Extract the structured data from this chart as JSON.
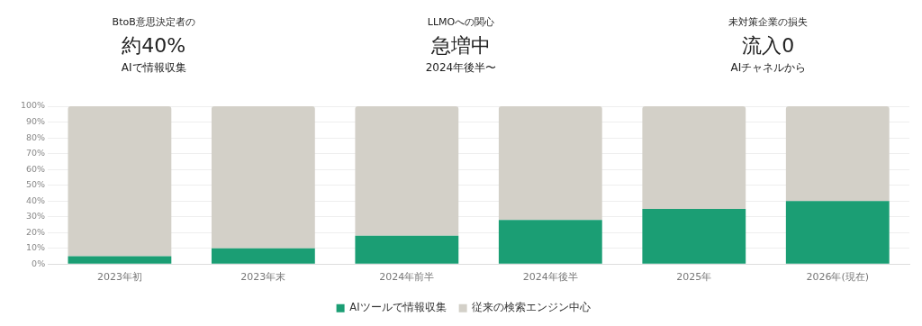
{
  "chart_data": [
    {
      "type": "other",
      "title": "BtoB意思決定者の",
      "subtitle": "約40%",
      "annotations": [
        "AIで情報収集"
      ]
    },
    {
      "type": "other",
      "title": "LLMOへの関心",
      "subtitle": "急増中",
      "annotations": [
        "2024年後半〜"
      ]
    },
    {
      "type": "other",
      "title": "未対策企業の損失",
      "subtitle": "流入0",
      "annotations": [
        "AIチャネルから"
      ]
    },
    {
      "type": "bar",
      "stacked": true,
      "categories": [
        "2023年初",
        "2023年末",
        "2024年前半",
        "2024年後半",
        "2025年",
        "2026年(現在)"
      ],
      "series": [
        {
          "name": "AIツールで情報収集",
          "color": "#1b9e74",
          "values": [
            5,
            10,
            18,
            28,
            35,
            40
          ]
        },
        {
          "name": "従来の検索エンジン中心",
          "color": "#d3d0c8",
          "values": [
            95,
            90,
            82,
            72,
            65,
            60
          ]
        }
      ],
      "ylim": [
        0,
        100
      ],
      "yticks": [
        {
          "value": 0,
          "label": "0%"
        },
        {
          "value": 10,
          "label": "10%"
        },
        {
          "value": 20,
          "label": "20%"
        },
        {
          "value": 30,
          "label": "30%"
        },
        {
          "value": 40,
          "label": "40%"
        },
        {
          "value": 50,
          "label": "50%"
        },
        {
          "value": 60,
          "label": "60%"
        },
        {
          "value": 70,
          "label": "70%"
        },
        {
          "value": 80,
          "label": "80%"
        },
        {
          "value": 90,
          "label": "90%"
        },
        {
          "value": 100,
          "label": "100%"
        }
      ],
      "grid": "y",
      "legend": "bottom"
    }
  ]
}
